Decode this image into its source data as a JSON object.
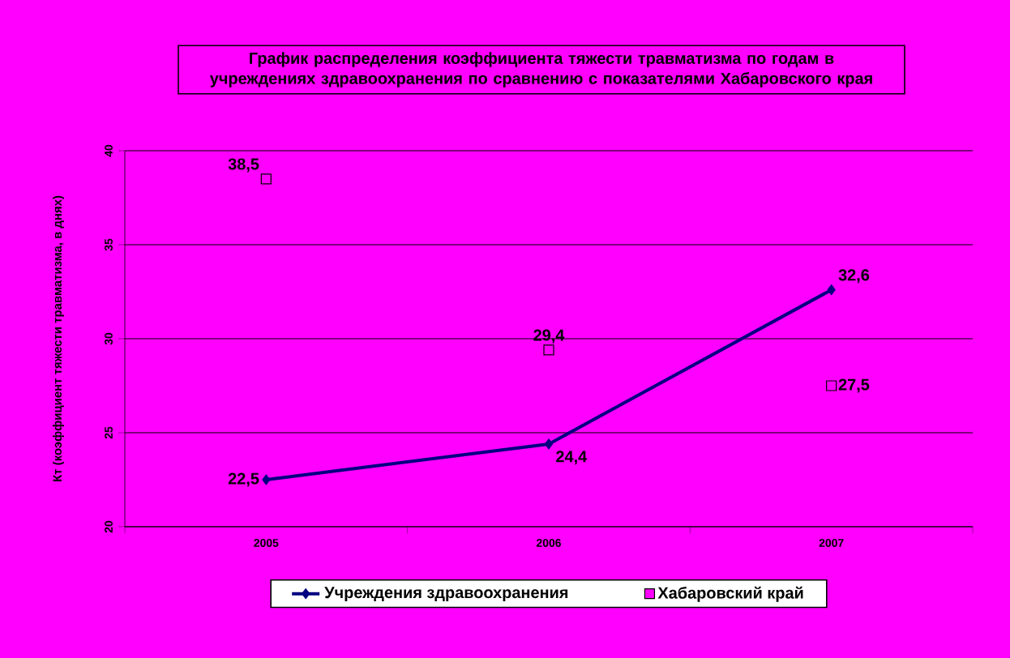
{
  "chart_data": {
    "type": "line",
    "title": "График распределения коэффициента тяжести травматизма по годам в учреждениях здравоохранения по сравнению с показателями Хабаровского края",
    "ylabel": "Кт (коэффициент тяжести травматизма, в днях)",
    "categories": [
      "2005",
      "2006",
      "2007"
    ],
    "series": [
      {
        "name": "Учреждения здравоохранения",
        "color": "#000080",
        "values": [
          22.5,
          24.4,
          32.6
        ],
        "marker": "diamond",
        "value_labels": [
          "22,5",
          "24,4",
          "32,6"
        ]
      },
      {
        "name": "Хабаровский край",
        "type": "scatter",
        "color": "#ff00ff",
        "values": [
          38.5,
          29.4,
          27.5
        ],
        "marker": "square",
        "value_labels": [
          "38,5",
          "29,4",
          "27,5"
        ]
      }
    ],
    "ylim": [
      20,
      40
    ],
    "yticks": [
      20,
      25,
      30,
      35,
      40
    ],
    "grid": "y",
    "legend": "bottom"
  }
}
